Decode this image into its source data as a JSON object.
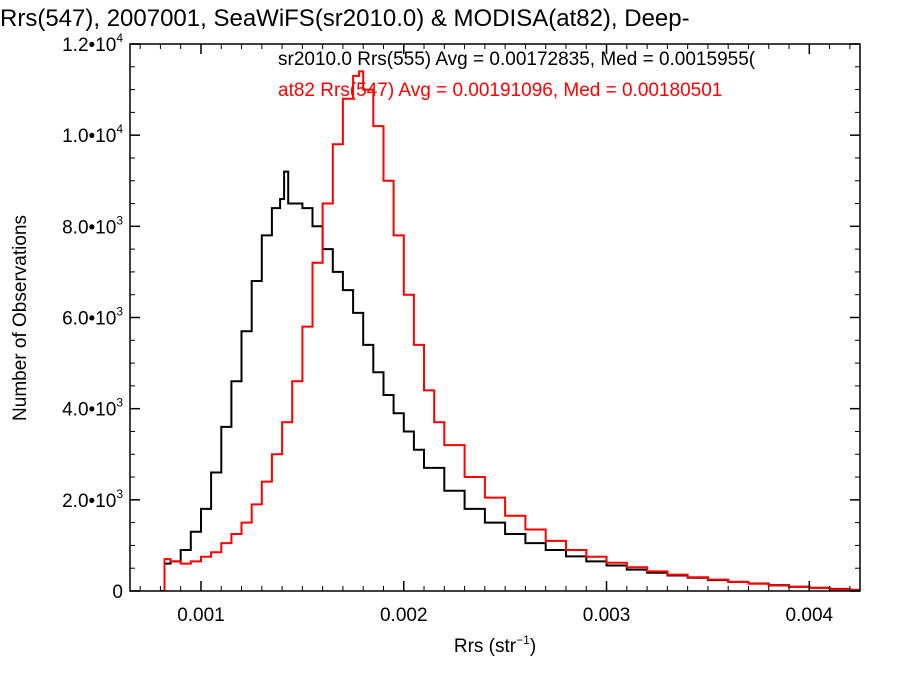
{
  "chart_data": {
    "type": "line",
    "title": "Rrs(547), 2007001, SeaWiFS(sr2010.0) & MODISA(at82), Deep-",
    "xlabel": "Rrs (str",
    "xlabel_exponent": "−1",
    "xlabel_suffix": ")",
    "ylabel": "Number of Observations",
    "xlim": [
      0.00065,
      0.00425
    ],
    "ylim": [
      0,
      12000
    ],
    "x_ticks": [
      {
        "value": 0.001,
        "label": "0.001"
      },
      {
        "value": 0.002,
        "label": "0.002"
      },
      {
        "value": 0.003,
        "label": "0.003"
      },
      {
        "value": 0.004,
        "label": "0.004"
      }
    ],
    "y_ticks": [
      {
        "value": 0,
        "mantissa": "0",
        "exp": ""
      },
      {
        "value": 2000,
        "mantissa": "2.0•10",
        "exp": "3"
      },
      {
        "value": 4000,
        "mantissa": "4.0•10",
        "exp": "3"
      },
      {
        "value": 6000,
        "mantissa": "6.0•10",
        "exp": "3"
      },
      {
        "value": 8000,
        "mantissa": "8.0•10",
        "exp": "3"
      },
      {
        "value": 10000,
        "mantissa": "1.0•10",
        "exp": "4"
      },
      {
        "value": 12000,
        "mantissa": "1.2•10",
        "exp": "4"
      }
    ],
    "grid": false,
    "legend_position": "top-right",
    "series": [
      {
        "name": "sr2010.0 Rrs(555) Avg = 0.00172835, Med = 0.0015955(",
        "color": "#000000",
        "x": [
          0.0008,
          0.00082,
          0.00085,
          0.0009,
          0.00095,
          0.001,
          0.00105,
          0.0011,
          0.00115,
          0.0012,
          0.00125,
          0.0013,
          0.00135,
          0.00139,
          0.00141,
          0.00143,
          0.00145,
          0.0015,
          0.00155,
          0.0016,
          0.00165,
          0.0017,
          0.00175,
          0.0018,
          0.00185,
          0.0019,
          0.00195,
          0.002,
          0.00205,
          0.0021,
          0.0022,
          0.0023,
          0.0024,
          0.0025,
          0.0026,
          0.0027,
          0.0028,
          0.0029,
          0.003,
          0.0031,
          0.0032,
          0.0033,
          0.0034,
          0.0035,
          0.0036,
          0.0037,
          0.0038,
          0.0039,
          0.004,
          0.0041,
          0.0042
        ],
        "y": [
          0,
          600,
          650,
          900,
          1300,
          1800,
          2600,
          3600,
          4600,
          5700,
          6800,
          7800,
          8400,
          8600,
          9200,
          8500,
          8500,
          8400,
          8000,
          7500,
          7000,
          6600,
          6100,
          5400,
          4800,
          4300,
          3900,
          3500,
          3100,
          2700,
          2200,
          1800,
          1500,
          1250,
          1050,
          900,
          760,
          650,
          560,
          470,
          400,
          340,
          290,
          240,
          200,
          165,
          130,
          95,
          70,
          45,
          25
        ]
      },
      {
        "name": "at82 Rrs(547) Avg = 0.00191096, Med = 0.00180501",
        "color": "#ff0000",
        "x": [
          0.0008,
          0.00082,
          0.00085,
          0.0009,
          0.00095,
          0.001,
          0.00105,
          0.0011,
          0.00115,
          0.0012,
          0.00125,
          0.0013,
          0.00135,
          0.0014,
          0.00145,
          0.0015,
          0.00155,
          0.0016,
          0.00165,
          0.0017,
          0.00175,
          0.00178,
          0.0018,
          0.00185,
          0.0019,
          0.00195,
          0.002,
          0.00205,
          0.0021,
          0.00215,
          0.0022,
          0.0023,
          0.0024,
          0.0025,
          0.0026,
          0.0027,
          0.0028,
          0.0029,
          0.003,
          0.0031,
          0.0032,
          0.0033,
          0.0034,
          0.0035,
          0.0036,
          0.0037,
          0.0038,
          0.0039,
          0.004,
          0.0041,
          0.0042
        ],
        "y": [
          0,
          700,
          650,
          600,
          650,
          750,
          850,
          1050,
          1250,
          1500,
          1900,
          2400,
          3000,
          3700,
          4600,
          5800,
          7200,
          8500,
          9800,
          10800,
          11300,
          11400,
          11000,
          10200,
          9000,
          7800,
          6500,
          5400,
          4400,
          3700,
          3200,
          2500,
          2050,
          1650,
          1350,
          1100,
          900,
          750,
          620,
          520,
          430,
          360,
          300,
          250,
          200,
          160,
          120,
          90,
          65,
          40,
          25
        ]
      }
    ]
  }
}
